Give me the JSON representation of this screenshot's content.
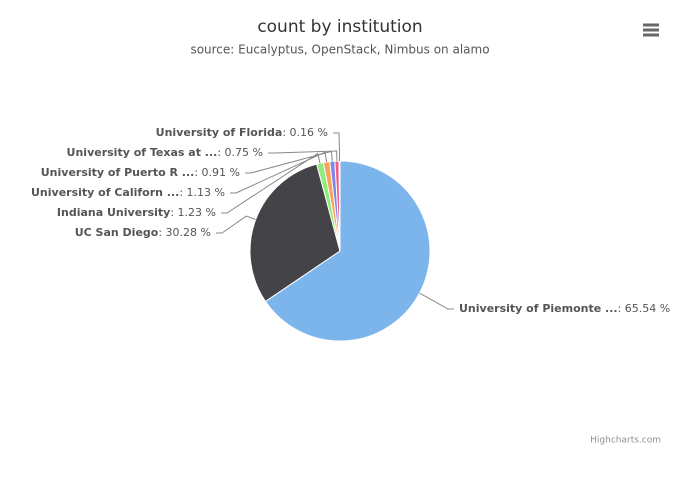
{
  "chart_data": {
    "type": "pie",
    "title": "count by institution",
    "subtitle": "source: Eucalyptus, OpenStack, Nimbus on alamo",
    "categories": [
      "University of Piemonte ...",
      "UC San Diego",
      "Indiana University",
      "University of Californ ...",
      "University of Puerto R ...",
      "University of Texas at ...",
      "University of Florida"
    ],
    "values": [
      65.54,
      30.28,
      1.23,
      1.13,
      0.91,
      0.75,
      0.16
    ],
    "value_labels": [
      ": 65.54 %",
      ": 30.28 %",
      ": 1.23 %",
      ": 1.13 %",
      ": 0.91 %",
      ": 0.75 %",
      ": 0.16 %"
    ],
    "colors": [
      "#7cb5ec",
      "#434348",
      "#90ed7d",
      "#f7a35c",
      "#8085e9",
      "#f15c80",
      "#e4d354"
    ],
    "credits": "Highcharts.com"
  }
}
